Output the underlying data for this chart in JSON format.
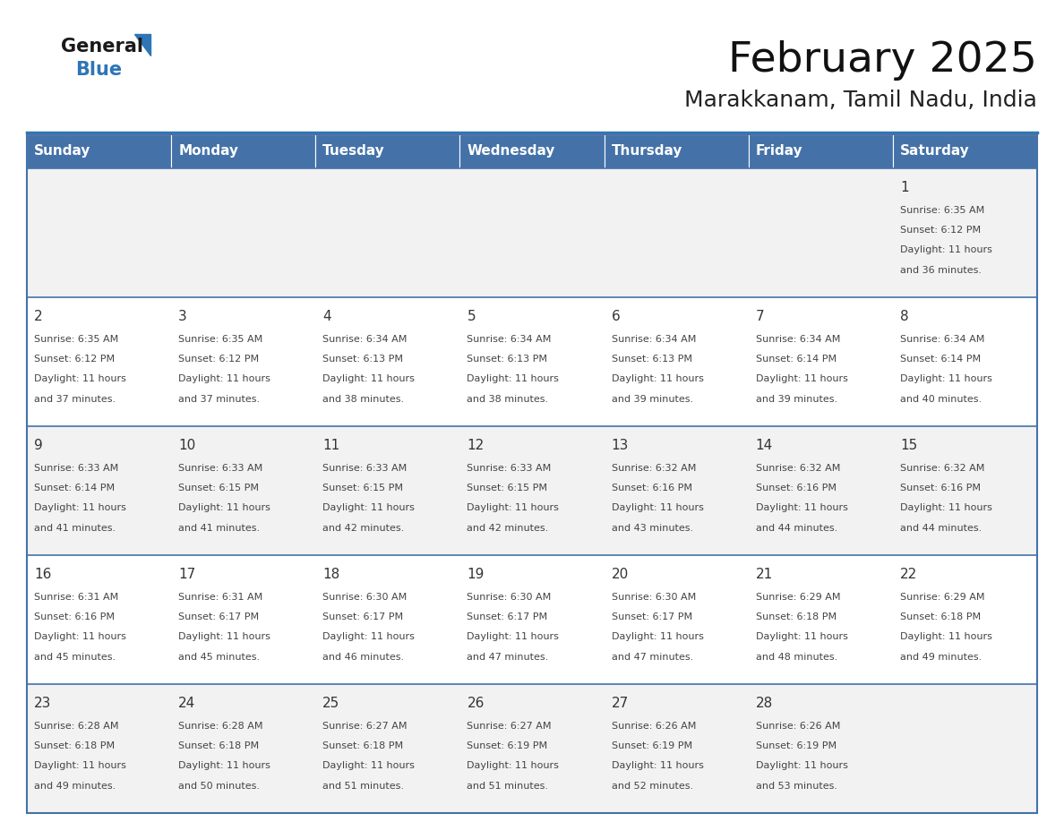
{
  "title": "February 2025",
  "subtitle": "Marakkanam, Tamil Nadu, India",
  "header_bg": "#4472a8",
  "header_text_color": "#ffffff",
  "day_names": [
    "Sunday",
    "Monday",
    "Tuesday",
    "Wednesday",
    "Thursday",
    "Friday",
    "Saturday"
  ],
  "row_bg_odd": "#f2f2f2",
  "row_bg_even": "#ffffff",
  "cell_border_color": "#4472a8",
  "day_num_color": "#333333",
  "info_text_color": "#444444",
  "logo_black": "#1a1a1a",
  "logo_blue": "#2e75b6",
  "calendar_data": [
    [
      null,
      null,
      null,
      null,
      null,
      null,
      {
        "day": "1",
        "sunrise": "6:35 AM",
        "sunset": "6:12 PM",
        "daylight": "11 hours",
        "daylight2": "and 36 minutes."
      }
    ],
    [
      {
        "day": "2",
        "sunrise": "6:35 AM",
        "sunset": "6:12 PM",
        "daylight": "11 hours",
        "daylight2": "and 37 minutes."
      },
      {
        "day": "3",
        "sunrise": "6:35 AM",
        "sunset": "6:12 PM",
        "daylight": "11 hours",
        "daylight2": "and 37 minutes."
      },
      {
        "day": "4",
        "sunrise": "6:34 AM",
        "sunset": "6:13 PM",
        "daylight": "11 hours",
        "daylight2": "and 38 minutes."
      },
      {
        "day": "5",
        "sunrise": "6:34 AM",
        "sunset": "6:13 PM",
        "daylight": "11 hours",
        "daylight2": "and 38 minutes."
      },
      {
        "day": "6",
        "sunrise": "6:34 AM",
        "sunset": "6:13 PM",
        "daylight": "11 hours",
        "daylight2": "and 39 minutes."
      },
      {
        "day": "7",
        "sunrise": "6:34 AM",
        "sunset": "6:14 PM",
        "daylight": "11 hours",
        "daylight2": "and 39 minutes."
      },
      {
        "day": "8",
        "sunrise": "6:34 AM",
        "sunset": "6:14 PM",
        "daylight": "11 hours",
        "daylight2": "and 40 minutes."
      }
    ],
    [
      {
        "day": "9",
        "sunrise": "6:33 AM",
        "sunset": "6:14 PM",
        "daylight": "11 hours",
        "daylight2": "and 41 minutes."
      },
      {
        "day": "10",
        "sunrise": "6:33 AM",
        "sunset": "6:15 PM",
        "daylight": "11 hours",
        "daylight2": "and 41 minutes."
      },
      {
        "day": "11",
        "sunrise": "6:33 AM",
        "sunset": "6:15 PM",
        "daylight": "11 hours",
        "daylight2": "and 42 minutes."
      },
      {
        "day": "12",
        "sunrise": "6:33 AM",
        "sunset": "6:15 PM",
        "daylight": "11 hours",
        "daylight2": "and 42 minutes."
      },
      {
        "day": "13",
        "sunrise": "6:32 AM",
        "sunset": "6:16 PM",
        "daylight": "11 hours",
        "daylight2": "and 43 minutes."
      },
      {
        "day": "14",
        "sunrise": "6:32 AM",
        "sunset": "6:16 PM",
        "daylight": "11 hours",
        "daylight2": "and 44 minutes."
      },
      {
        "day": "15",
        "sunrise": "6:32 AM",
        "sunset": "6:16 PM",
        "daylight": "11 hours",
        "daylight2": "and 44 minutes."
      }
    ],
    [
      {
        "day": "16",
        "sunrise": "6:31 AM",
        "sunset": "6:16 PM",
        "daylight": "11 hours",
        "daylight2": "and 45 minutes."
      },
      {
        "day": "17",
        "sunrise": "6:31 AM",
        "sunset": "6:17 PM",
        "daylight": "11 hours",
        "daylight2": "and 45 minutes."
      },
      {
        "day": "18",
        "sunrise": "6:30 AM",
        "sunset": "6:17 PM",
        "daylight": "11 hours",
        "daylight2": "and 46 minutes."
      },
      {
        "day": "19",
        "sunrise": "6:30 AM",
        "sunset": "6:17 PM",
        "daylight": "11 hours",
        "daylight2": "and 47 minutes."
      },
      {
        "day": "20",
        "sunrise": "6:30 AM",
        "sunset": "6:17 PM",
        "daylight": "11 hours",
        "daylight2": "and 47 minutes."
      },
      {
        "day": "21",
        "sunrise": "6:29 AM",
        "sunset": "6:18 PM",
        "daylight": "11 hours",
        "daylight2": "and 48 minutes."
      },
      {
        "day": "22",
        "sunrise": "6:29 AM",
        "sunset": "6:18 PM",
        "daylight": "11 hours",
        "daylight2": "and 49 minutes."
      }
    ],
    [
      {
        "day": "23",
        "sunrise": "6:28 AM",
        "sunset": "6:18 PM",
        "daylight": "11 hours",
        "daylight2": "and 49 minutes."
      },
      {
        "day": "24",
        "sunrise": "6:28 AM",
        "sunset": "6:18 PM",
        "daylight": "11 hours",
        "daylight2": "and 50 minutes."
      },
      {
        "day": "25",
        "sunrise": "6:27 AM",
        "sunset": "6:18 PM",
        "daylight": "11 hours",
        "daylight2": "and 51 minutes."
      },
      {
        "day": "26",
        "sunrise": "6:27 AM",
        "sunset": "6:19 PM",
        "daylight": "11 hours",
        "daylight2": "and 51 minutes."
      },
      {
        "day": "27",
        "sunrise": "6:26 AM",
        "sunset": "6:19 PM",
        "daylight": "11 hours",
        "daylight2": "and 52 minutes."
      },
      {
        "day": "28",
        "sunrise": "6:26 AM",
        "sunset": "6:19 PM",
        "daylight": "11 hours",
        "daylight2": "and 53 minutes."
      },
      null
    ]
  ]
}
